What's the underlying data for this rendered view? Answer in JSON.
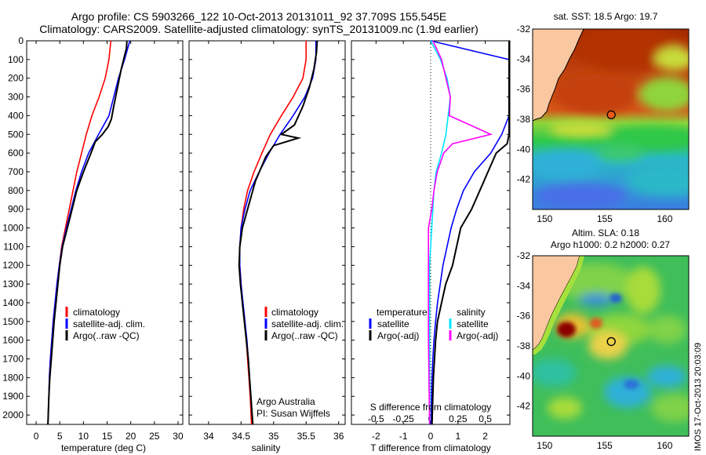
{
  "header": {
    "line1": "Argo profile: CS 5903266_122 10-Oct-2013 20131011_92 37.709S 155.545E",
    "line2": "Climatology: CARS2009. Satellite-adjusted climatology: synTS_20131009.nc (1.9d earlier)"
  },
  "stamp": "IMOS 17-Oct-2013 20:03:09",
  "colors": {
    "climatology": "#ff0000",
    "satellite": "#0000ff",
    "argo": "#000000",
    "satellite_diff_s": "#00e5ff",
    "argo_diff_s": "#ff00ff"
  },
  "chart_data": [
    {
      "type": "line",
      "xlabel": "temperature (deg C)",
      "ylabel": "",
      "xlim": [
        -2,
        31
      ],
      "ylim": [
        2050,
        0
      ],
      "x_ticks": [
        0,
        5,
        10,
        15,
        20,
        25,
        30
      ],
      "y_ticks": [
        0,
        100,
        200,
        300,
        400,
        500,
        600,
        700,
        800,
        900,
        1000,
        1100,
        1200,
        1300,
        1400,
        1500,
        1600,
        1700,
        1800,
        1900,
        2000
      ],
      "legend": [
        "climatology",
        "satellite-adj. clim.",
        "Argo(..raw -QC)"
      ],
      "legend_placement": "lower-center",
      "series": [
        {
          "name": "climatology",
          "color": "#ff0000",
          "x": [
            15.8,
            15.4,
            14.6,
            13.3,
            11.8,
            10.6,
            9.6,
            8.6,
            7.8,
            7.0,
            6.2,
            5.4,
            4.9,
            4.4,
            4.0,
            3.6,
            3.3,
            3.0,
            2.8,
            2.7,
            2.5
          ],
          "y": [
            0,
            100,
            200,
            300,
            400,
            500,
            600,
            700,
            800,
            900,
            1000,
            1100,
            1200,
            1300,
            1400,
            1500,
            1600,
            1700,
            1800,
            1900,
            2050
          ]
        },
        {
          "name": "satellite-adj. clim.",
          "color": "#0000ff",
          "x": [
            19.8,
            18.7,
            17.4,
            16.4,
            15.4,
            13.2,
            11.1,
            9.6,
            8.4,
            7.4,
            6.4,
            5.5,
            4.9,
            4.4,
            4.0,
            3.6,
            3.3,
            3.0,
            2.8,
            2.7,
            2.5
          ],
          "y": [
            0,
            100,
            200,
            300,
            400,
            500,
            600,
            700,
            800,
            900,
            1000,
            1100,
            1200,
            1300,
            1400,
            1500,
            1600,
            1700,
            1800,
            1900,
            2050
          ]
        },
        {
          "name": "Argo(..raw -QC)",
          "color": "#000000",
          "x": [
            19.2,
            19.1,
            18.0,
            17.2,
            16.4,
            15.9,
            15.2,
            14.0,
            12.5,
            11.6,
            10.0,
            8.6,
            7.6,
            6.6,
            5.6,
            5.0,
            4.6,
            4.2,
            3.8,
            3.5,
            3.2,
            2.9,
            2.7,
            2.5
          ],
          "y": [
            0,
            40,
            150,
            250,
            350,
            420,
            460,
            500,
            540,
            600,
            700,
            800,
            900,
            1000,
            1100,
            1200,
            1300,
            1400,
            1500,
            1600,
            1700,
            1800,
            1900,
            2050
          ]
        }
      ]
    },
    {
      "type": "line",
      "xlabel": "salinity",
      "xlim": [
        33.7,
        36.1
      ],
      "ylim": [
        2050,
        0
      ],
      "x_ticks": [
        34,
        34.5,
        35,
        35.5,
        36
      ],
      "legend": [
        "climatology",
        "satellite-adj. clim.",
        "Argo(..raw -QC)"
      ],
      "legend_placement": "lower-center",
      "annotations": [
        "Argo Australia",
        "PI: Susan Wijffels"
      ],
      "series": [
        {
          "name": "climatology",
          "color": "#ff0000",
          "x": [
            35.5,
            35.5,
            35.45,
            35.3,
            35.12,
            34.95,
            34.82,
            34.7,
            34.6,
            34.54,
            34.5,
            34.48,
            34.48,
            34.5,
            34.52,
            34.55,
            34.58,
            34.6,
            34.62,
            34.64,
            34.66
          ],
          "y": [
            0,
            100,
            200,
            300,
            400,
            500,
            600,
            700,
            800,
            900,
            1000,
            1100,
            1200,
            1300,
            1400,
            1500,
            1600,
            1700,
            1800,
            1900,
            2050
          ]
        },
        {
          "name": "satellite-adj. clim.",
          "color": "#0000ff",
          "x": [
            35.65,
            35.65,
            35.6,
            35.48,
            35.3,
            35.1,
            34.93,
            34.78,
            34.64,
            34.56,
            34.5,
            34.48,
            34.48,
            34.5,
            34.53,
            34.56,
            34.59,
            34.61,
            34.63,
            34.65,
            34.68
          ],
          "y": [
            0,
            100,
            200,
            300,
            400,
            500,
            600,
            700,
            800,
            900,
            1000,
            1100,
            1200,
            1300,
            1400,
            1500,
            1600,
            1700,
            1800,
            1900,
            2050
          ]
        },
        {
          "name": "Argo(..raw -QC)",
          "color": "#000000",
          "x": [
            35.67,
            35.66,
            35.62,
            35.55,
            35.45,
            35.32,
            35.12,
            35.38,
            35.0,
            34.88,
            34.72,
            34.6,
            34.52,
            34.48,
            34.47,
            34.49,
            34.52,
            34.55,
            34.58,
            34.61,
            34.63,
            34.65,
            34.68
          ],
          "y": [
            0,
            60,
            150,
            250,
            350,
            450,
            500,
            520,
            560,
            620,
            750,
            900,
            1000,
            1100,
            1200,
            1300,
            1400,
            1500,
            1600,
            1700,
            1800,
            1900,
            2050
          ]
        }
      ]
    },
    {
      "type": "line",
      "xlabel": "T difference from climatology",
      "xlabel_top": "S difference from climatology",
      "xlim": [
        -2.9,
        2.9
      ],
      "ylim": [
        2050,
        0
      ],
      "x_ticks": [
        -2,
        -1,
        0,
        1,
        2
      ],
      "x_ticks_top": [
        -0.5,
        -0.25,
        0,
        0.25,
        0.5
      ],
      "legend_left_title": "temperature",
      "legend_right_title": "salinity",
      "legend": [
        "satellite",
        "Argo(-adj)",
        "satellite",
        "Argo(-adj)"
      ],
      "legend_placement": "lower-center",
      "series": [
        {
          "name": "satellite",
          "quantity": "T",
          "color": "#0000ff",
          "x": [
            0.0,
            2.9,
            3.2,
            3.1,
            3.0,
            2.6,
            2.2,
            1.6,
            1.2,
            0.95,
            0.75,
            0.6,
            0.45,
            0.35,
            0.25,
            0.18,
            0.12,
            0.08,
            0.05,
            0.03,
            0.02
          ],
          "y": [
            0,
            100,
            200,
            300,
            400,
            500,
            600,
            700,
            800,
            900,
            1000,
            1100,
            1200,
            1300,
            1400,
            1500,
            1600,
            1700,
            1800,
            1900,
            2050
          ]
        },
        {
          "name": "Argo(-adj)",
          "quantity": "T",
          "color": "#000000",
          "x": [
            3.0,
            3.4,
            3.5,
            3.3,
            3.6,
            3.4,
            3.9,
            2.8,
            2.4,
            2.1,
            1.8,
            1.5,
            1.1,
            0.95,
            0.8,
            0.55,
            0.4,
            0.25,
            0.18,
            0.1,
            0.05
          ],
          "y": [
            0,
            100,
            200,
            300,
            400,
            450,
            500,
            550,
            600,
            700,
            800,
            900,
            1000,
            1100,
            1200,
            1300,
            1400,
            1500,
            1600,
            1800,
            2050
          ]
        },
        {
          "name": "satellite",
          "quantity": "S",
          "color": "#00e5ff",
          "x": [
            0.0,
            0.09,
            0.15,
            0.18,
            0.16,
            0.14,
            0.1,
            0.05,
            0.03,
            0.02,
            0.01,
            0.0,
            -0.01,
            -0.01,
            -0.01,
            -0.01,
            -0.01,
            -0.01,
            -0.01,
            -0.01,
            -0.01
          ],
          "y": [
            0,
            100,
            200,
            300,
            400,
            500,
            600,
            700,
            800,
            900,
            1000,
            1100,
            1200,
            1300,
            1400,
            1500,
            1600,
            1700,
            1800,
            1900,
            2050
          ]
        },
        {
          "name": "Argo(-adj)",
          "quantity": "S",
          "color": "#ff00ff",
          "x": [
            0.02,
            0.1,
            0.14,
            0.18,
            0.17,
            0.55,
            0.2,
            0.12,
            0.06,
            0.03,
            0.01,
            -0.02,
            -0.02,
            -0.02,
            -0.02,
            -0.02,
            -0.01
          ],
          "y": [
            0,
            100,
            200,
            300,
            400,
            500,
            550,
            600,
            700,
            800,
            900,
            1000,
            1100,
            1200,
            1400,
            1600,
            2050
          ]
        }
      ]
    },
    {
      "type": "heatmap",
      "title": "sat. SST: 18.5 Argo: 19.7",
      "xlim": [
        149,
        162
      ],
      "ylim": [
        -44,
        -32
      ],
      "x_ticks": [
        150,
        155,
        160
      ],
      "y_ticks": [
        -32,
        -34,
        -36,
        -38,
        -40,
        -42
      ],
      "marker": {
        "lon": 155.545,
        "lat": -37.709
      }
    },
    {
      "type": "heatmap",
      "title": "Altim. SLA: 0.18",
      "subtitle": "Argo h1000: 0.2 h2000: 0.27",
      "xlim": [
        149,
        162
      ],
      "ylim": [
        -44,
        -32
      ],
      "x_ticks": [
        150,
        155,
        160
      ],
      "y_ticks": [
        -32,
        -34,
        -36,
        -38,
        -40,
        -42
      ],
      "marker": {
        "lon": 155.545,
        "lat": -37.709
      }
    }
  ]
}
